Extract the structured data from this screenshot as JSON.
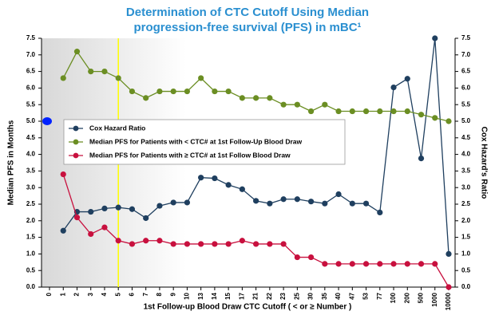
{
  "chart_data": {
    "type": "line",
    "title": [
      "Determination of CTC Cutoff Using Median",
      "progression-free survival (PFS) in mBC¹"
    ],
    "xlabel": "1st Follow-up Blood Draw CTC Cutoff ( < or ≥ Number )",
    "ylabel": "Median PFS in Months",
    "y2label": "Cox Hazard's Ratio",
    "categories": [
      0,
      1,
      2,
      3,
      4,
      5,
      6,
      7,
      8,
      9,
      10,
      13,
      14,
      15,
      17,
      21,
      22,
      23,
      25,
      30,
      35,
      40,
      47,
      53,
      77,
      100,
      200,
      500,
      1000,
      10000
    ],
    "series": [
      {
        "name": "Cox Hazard Ratio",
        "color": "#1f3f5f",
        "axis": "y2",
        "values": [
          null,
          1.7,
          2.27,
          2.27,
          2.37,
          2.4,
          2.35,
          2.08,
          2.45,
          2.55,
          2.55,
          3.3,
          3.28,
          3.08,
          2.95,
          2.6,
          2.52,
          2.65,
          2.65,
          2.58,
          2.52,
          2.8,
          2.52,
          2.52,
          2.25,
          6.02,
          6.28,
          3.88,
          7.5,
          1.0
        ]
      },
      {
        "name": "Median PFS for Patients with < CTC# at 1st Follow-Up Blood Draw",
        "color": "#6b8e23",
        "values": [
          null,
          6.3,
          7.1,
          6.5,
          6.5,
          6.3,
          5.9,
          5.7,
          5.9,
          5.9,
          5.9,
          6.3,
          5.9,
          5.9,
          5.7,
          5.7,
          5.7,
          5.5,
          5.5,
          5.3,
          5.5,
          5.3,
          5.3,
          5.3,
          5.3,
          5.3,
          5.3,
          5.2,
          5.1,
          5.0
        ]
      },
      {
        "name": "Median PFS for Patients with ≥ CTC# at 1st Follow Blood Draw",
        "color": "#c8103e",
        "values": [
          null,
          3.4,
          2.1,
          1.6,
          1.8,
          1.4,
          1.3,
          1.4,
          1.4,
          1.3,
          1.3,
          1.3,
          1.3,
          1.3,
          1.4,
          1.3,
          1.3,
          1.3,
          0.9,
          0.9,
          0.7,
          0.7,
          0.7,
          0.7,
          0.7,
          0.7,
          0.7,
          0.7,
          0.7,
          0.0
        ]
      }
    ],
    "highlight_point": {
      "x": 0,
      "value": 5.0,
      "color": "#0022ff"
    },
    "vline": {
      "x": 5,
      "color": "#ffff00"
    },
    "ylim": [
      0,
      7.5
    ],
    "yticks": [
      {
        "value": 0,
        "label": "0.0"
      },
      {
        "value": 0.5,
        "label": "0.5"
      },
      {
        "value": 1,
        "label": "1.0"
      },
      {
        "value": 1.5,
        "label": "1.5"
      },
      {
        "value": 2,
        "label": "2.0"
      },
      {
        "value": 2.5,
        "label": "2.5"
      },
      {
        "value": 3,
        "label": "3.0"
      },
      {
        "value": 3.5,
        "label": "3.5"
      },
      {
        "value": 4,
        "label": "4.0"
      },
      {
        "value": 4.5,
        "label": "4.5"
      },
      {
        "value": 5,
        "label": "5.0"
      },
      {
        "value": 5.5,
        "label": "5.5"
      },
      {
        "value": 6,
        "label": "6.0"
      },
      {
        "value": 6.5,
        "label": "6.5"
      },
      {
        "value": 7,
        "label": "7.0"
      },
      {
        "value": 7.5,
        "label": "7.5"
      }
    ],
    "y2lim": [
      0,
      7.5
    ],
    "y2ticks": [
      {
        "value": 0,
        "label": "0.0"
      },
      {
        "value": 0.5,
        "label": "0.5"
      },
      {
        "value": 1,
        "label": "1.0"
      },
      {
        "value": 1.5,
        "label": "1.5"
      },
      {
        "value": 2,
        "label": "2.0"
      },
      {
        "value": 2.5,
        "label": "2.5"
      },
      {
        "value": 3,
        "label": "3.0"
      },
      {
        "value": 3.5,
        "label": "3.5"
      },
      {
        "value": 4,
        "label": "4.0"
      },
      {
        "value": 4.5,
        "label": "4.5"
      },
      {
        "value": 5,
        "label": "5.0"
      },
      {
        "value": 5.5,
        "label": "5.5"
      },
      {
        "value": 6,
        "label": "6.0"
      },
      {
        "value": 6.5,
        "label": "6.5"
      },
      {
        "value": 7,
        "label": "7.0"
      },
      {
        "value": 7.5,
        "label": "7.5"
      }
    ],
    "grid": false,
    "legend": "upper left"
  }
}
